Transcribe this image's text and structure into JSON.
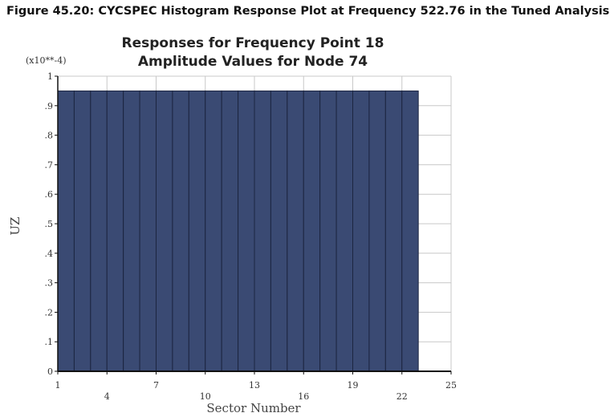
{
  "figure": {
    "caption": "Figure 45.20: CYCSPEC Histogram Response Plot at Frequency 522.76 in the Tuned Analysis"
  },
  "chart_data": {
    "type": "bar",
    "title": "Responses for Frequency Point 18",
    "subtitle": "Amplitude Values for Node 74",
    "xlabel": "Sector Number",
    "ylabel": "UZ",
    "y_exponent_label": "(x10**-4)",
    "xlim": [
      1,
      25
    ],
    "ylim": [
      0,
      1
    ],
    "x_tick_values": [
      1,
      4,
      7,
      10,
      13,
      16,
      19,
      22,
      25
    ],
    "x_tick_labels": [
      "1",
      "4",
      "7",
      "10",
      "13",
      "16",
      "19",
      "22",
      "25"
    ],
    "y_tick_values": [
      0,
      0.1,
      0.2,
      0.3,
      0.4,
      0.5,
      0.6,
      0.7,
      0.8,
      0.9,
      1
    ],
    "y_tick_labels": [
      "0",
      ".1",
      ".2",
      ".3",
      ".4",
      ".5",
      ".6",
      ".7",
      ".8",
      ".9",
      "1"
    ],
    "categories": [
      1,
      2,
      3,
      4,
      5,
      6,
      7,
      8,
      9,
      10,
      11,
      12,
      13,
      14,
      15,
      16,
      17,
      18,
      19,
      20,
      21,
      22
    ],
    "values": [
      0.95,
      0.95,
      0.95,
      0.95,
      0.95,
      0.95,
      0.95,
      0.95,
      0.95,
      0.95,
      0.95,
      0.95,
      0.95,
      0.95,
      0.95,
      0.95,
      0.95,
      0.95,
      0.95,
      0.95,
      0.95,
      0.95
    ],
    "grid": true,
    "bar_color": "#3a4a73",
    "bar_edge_color": "#1c2540",
    "grid_color": "#c8c8c8",
    "axis_color": "#111111"
  }
}
